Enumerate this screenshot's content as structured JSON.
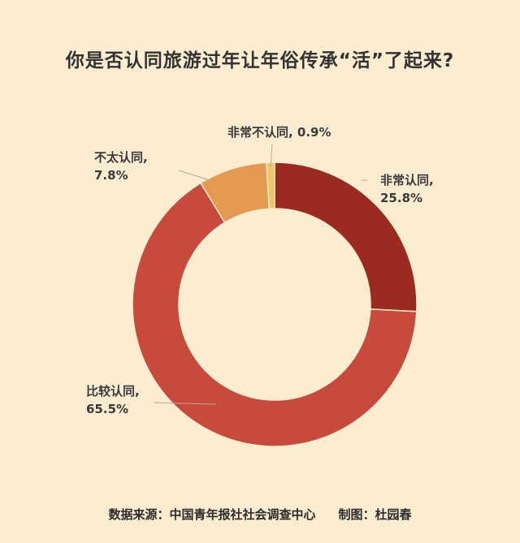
{
  "chart_data": {
    "type": "pie",
    "donut": true,
    "title": "你是否认同旅游过年让年俗传承“活”了起来?",
    "categories": [
      "非常认同",
      "比较认同",
      "不太认同",
      "非常不认同"
    ],
    "values": [
      25.8,
      65.5,
      7.8,
      0.9
    ],
    "value_labels": [
      "25.8%",
      "65.5%",
      "7.8%",
      "0.9%"
    ],
    "colors": [
      "#9b2b20",
      "#c84a3c",
      "#e49a50",
      "#f1c561"
    ],
    "background": "#fcecd0"
  },
  "footer": {
    "source": "数据来源：中国青年报社社会调查中心",
    "credit": "制图：杜园春"
  }
}
